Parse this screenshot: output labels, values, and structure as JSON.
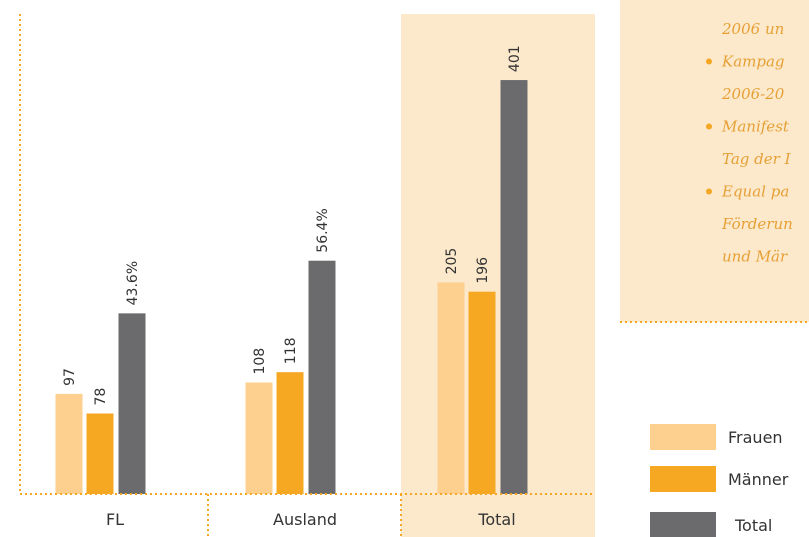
{
  "chart_data": {
    "type": "bar",
    "categories": [
      "FL",
      "Ausland",
      "Total"
    ],
    "series": [
      {
        "name": "Frauen",
        "color": "#fdd08f",
        "values": [
          97,
          108,
          205
        ]
      },
      {
        "name": "Männer",
        "color": "#f7a823",
        "values": [
          78,
          118,
          196
        ]
      },
      {
        "name": "Total",
        "color": "#6b6b6e",
        "values": [
          175,
          226,
          401
        ],
        "shares": [
          43.6,
          56.4,
          null
        ],
        "share_labels": [
          "43.6%",
          "56.4%",
          null
        ]
      }
    ],
    "ylim": [
      0,
      465
    ],
    "highlight_category": 2,
    "highlight_color": "#fce9cc"
  },
  "sidebar": {
    "items": [
      {
        "lines": [
          "2006 un"
        ]
      },
      {
        "lines": [
          "Kampag",
          "2006-20"
        ]
      },
      {
        "lines": [
          "Manifest",
          "Tag der I"
        ]
      },
      {
        "lines": [
          "Equal pa",
          "Förderun",
          "und Mär"
        ]
      }
    ]
  }
}
